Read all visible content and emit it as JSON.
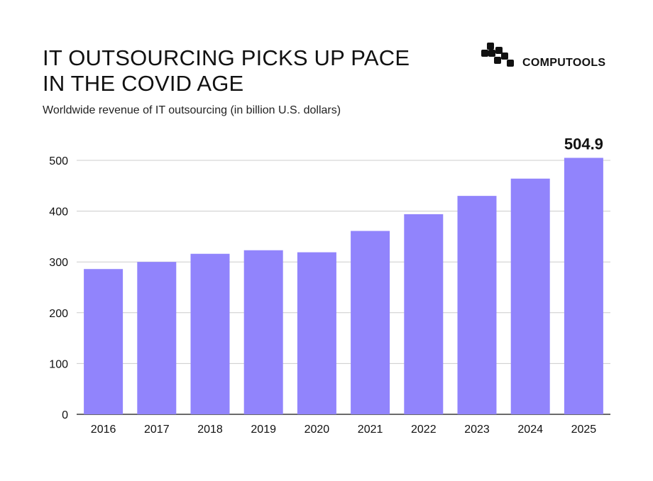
{
  "header": {
    "title_line1": "IT OUTSOURCING PICKS UP PACE",
    "title_line2": "IN THE COVID AGE",
    "subtitle": "Worldwide revenue of IT outsourcing (in billion U.S. dollars)"
  },
  "brand": {
    "name": "COMPUTOOLS",
    "logo_icon": "computools-logo-icon"
  },
  "colors": {
    "bar": "#9184fc",
    "grid": "#cccccc",
    "axis": "#111111",
    "text": "#111111"
  },
  "chart_data": {
    "type": "bar",
    "title": "IT OUTSOURCING PICKS UP PACE IN THE COVID AGE",
    "subtitle": "Worldwide revenue of IT outsourcing (in billion U.S. dollars)",
    "xlabel": "",
    "ylabel": "",
    "categories": [
      "2016",
      "2017",
      "2018",
      "2019",
      "2020",
      "2021",
      "2022",
      "2023",
      "2024",
      "2025"
    ],
    "values": [
      286,
      300,
      316,
      323,
      319,
      361,
      394,
      430,
      464,
      504.9
    ],
    "ylim": [
      0,
      500
    ],
    "yticks": [
      0,
      100,
      200,
      300,
      400,
      500
    ],
    "grid": true,
    "annotations": [
      {
        "category": "2025",
        "text": "504.9"
      }
    ]
  }
}
